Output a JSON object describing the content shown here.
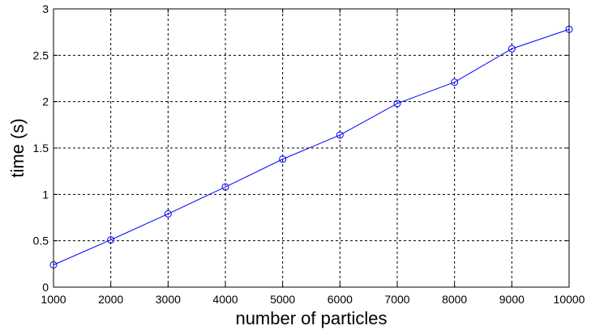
{
  "chart_data": {
    "type": "line",
    "title": "",
    "xlabel": "number of particles",
    "ylabel": "time (s)",
    "xlim": [
      1000,
      10000
    ],
    "ylim": [
      0,
      3
    ],
    "xticks": [
      1000,
      2000,
      3000,
      4000,
      5000,
      6000,
      7000,
      8000,
      9000,
      10000
    ],
    "yticks": [
      0,
      0.5,
      1,
      1.5,
      2,
      2.5,
      3
    ],
    "ytick_labels": [
      "0",
      "0.5",
      "1",
      "1.5",
      "2",
      "2.5",
      "3"
    ],
    "grid": true,
    "grid_style": "dashed",
    "marker": "circle",
    "series": [
      {
        "color": "#0000ff",
        "x": [
          1000,
          2000,
          3000,
          4000,
          5000,
          6000,
          7000,
          8000,
          9000,
          10000
        ],
        "y": [
          0.24,
          0.51,
          0.79,
          1.08,
          1.38,
          1.64,
          1.98,
          2.21,
          2.57,
          2.78
        ]
      }
    ]
  }
}
